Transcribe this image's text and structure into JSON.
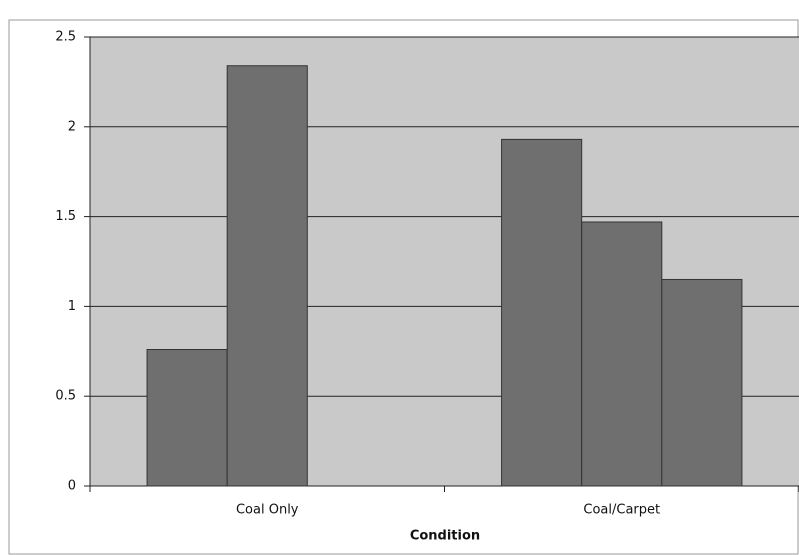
{
  "chart_data": {
    "type": "bar",
    "categories": [
      "Coal Only",
      "Coal/Carpet"
    ],
    "series": [
      {
        "color": "#6f6f6f",
        "values": [
          0.76,
          1.93
        ]
      },
      {
        "color": "#6f6f6f",
        "values": [
          2.34,
          1.47
        ]
      },
      {
        "color": "#6f6f6f",
        "values": [
          null,
          1.15
        ]
      }
    ],
    "x_label": "Condition",
    "ylim": [
      0,
      2.5
    ],
    "yticks": [
      0,
      0.5,
      1,
      1.5,
      2,
      2.5
    ],
    "grid": true
  }
}
